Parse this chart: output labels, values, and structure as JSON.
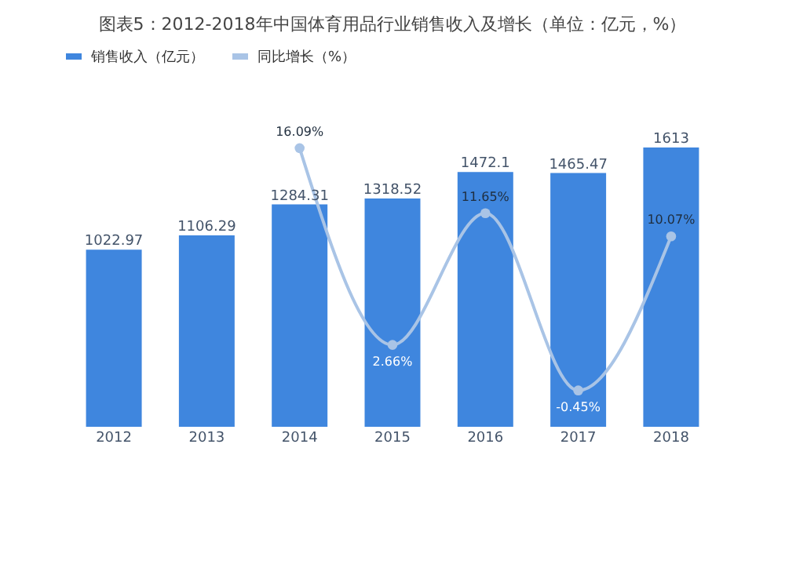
{
  "chart_data": {
    "type": "bar",
    "title": "图表5：2012-2018年中国体育用品行业销售收入及增长（单位：亿元，%）",
    "categories": [
      "2012",
      "2013",
      "2014",
      "2015",
      "2016",
      "2017",
      "2018"
    ],
    "series": [
      {
        "name": "销售收入（亿元）",
        "color": "#3f86de",
        "values": [
          1022.97,
          1106.29,
          1284.31,
          1318.52,
          1472.1,
          1465.47,
          1613
        ],
        "value_labels": [
          "1022.97",
          "1106.29",
          "1284.31",
          "1318.52",
          "1472.1",
          "1465.47",
          "1613"
        ]
      },
      {
        "name": "同比增长（%）",
        "type": "line",
        "axis": "y2",
        "color": "#a9c4e6",
        "values": [
          null,
          null,
          16.09,
          2.66,
          11.65,
          -0.45,
          10.07
        ],
        "value_labels": [
          null,
          null,
          "16.09%",
          "2.66%",
          "11.65%",
          "-0.45%",
          "10.07%"
        ]
      }
    ],
    "marker": "circle",
    "legend": "top",
    "grid": false,
    "tick_labels": "x"
  }
}
